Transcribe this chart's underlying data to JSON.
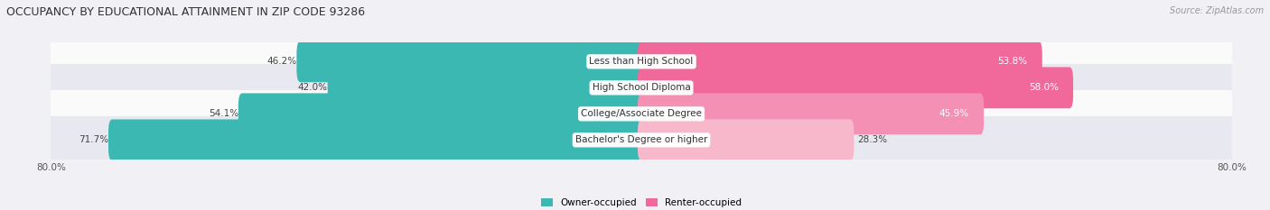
{
  "title": "OCCUPANCY BY EDUCATIONAL ATTAINMENT IN ZIP CODE 93286",
  "source": "Source: ZipAtlas.com",
  "categories": [
    "Less than High School",
    "High School Diploma",
    "College/Associate Degree",
    "Bachelor's Degree or higher"
  ],
  "owner_values": [
    46.2,
    42.0,
    54.1,
    71.7
  ],
  "renter_values": [
    53.8,
    58.0,
    45.9,
    28.3
  ],
  "owner_color": "#3cb8b2",
  "renter_colors": [
    "#f0699a",
    "#f0699a",
    "#f590b5",
    "#f8b8cc"
  ],
  "owner_legend": "Owner-occupied",
  "renter_legend": "Renter-occupied",
  "background_color": "#f0f0f5",
  "row_bg_colors": [
    "#fafafa",
    "#e8e8f0",
    "#fafafa",
    "#e8e8f0"
  ],
  "xlim": 80.0,
  "axis_label": "80.0%"
}
